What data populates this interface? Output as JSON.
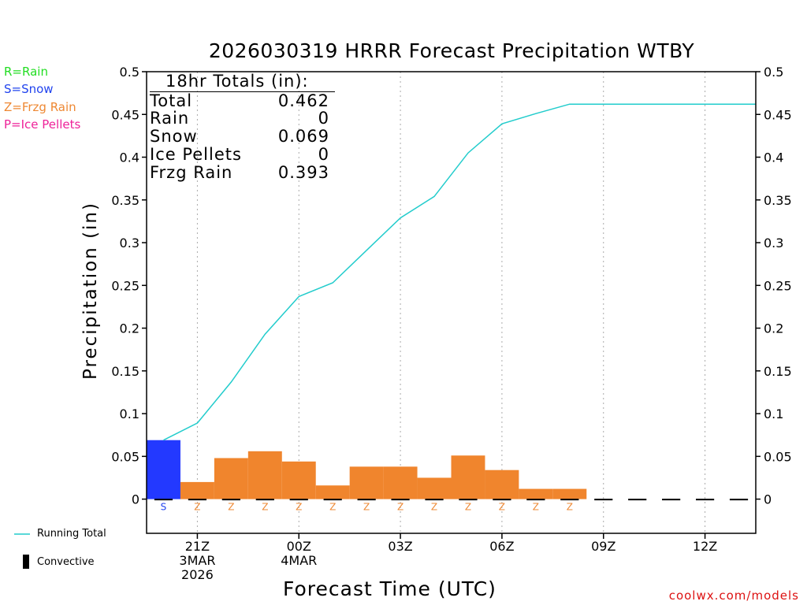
{
  "title": "2026030319 HRRR Forecast Precipitation WTBY",
  "legend": {
    "types": [
      {
        "label": "R=Rain",
        "color": "#22dd22"
      },
      {
        "label": "S=Snow",
        "color": "#2244ee"
      },
      {
        "label": "Z=Frzg Rain",
        "color": "#ee8833"
      },
      {
        "label": "P=Ice Pellets",
        "color": "#ee2299"
      }
    ],
    "running_total_label": "Running Total",
    "convective_label": "Convective"
  },
  "totals": {
    "header": "18hr Totals (in):",
    "rows": [
      {
        "label": "Total",
        "value": "0.462"
      },
      {
        "label": "Rain",
        "value": "0"
      },
      {
        "label": "Snow",
        "value": "0.069"
      },
      {
        "label": "Ice Pellets",
        "value": "0"
      },
      {
        "label": "Frzg Rain",
        "value": "0.393"
      }
    ]
  },
  "footer": {
    "credit": "coolwx.com/models"
  },
  "colors": {
    "snow": "#2339ff",
    "frzg_rain": "#f0852d",
    "running_total": "#22cccc",
    "snow_letter": "#2244ee",
    "frzg_letter": "#ee8833"
  },
  "chart_data": {
    "type": "bar",
    "title": "2026030319 HRRR Forecast Precipitation WTBY",
    "xlabel": "Forecast Time (UTC)",
    "ylabel": "Precipitation (in)",
    "ylim": [
      -0.04,
      0.5
    ],
    "xlim": [
      19.5,
      37.5
    ],
    "yticks": [
      0,
      0.05,
      0.1,
      0.15,
      0.2,
      0.25,
      0.3,
      0.35,
      0.4,
      0.45,
      0.5
    ],
    "ytick_labels": [
      "0",
      "0.05",
      "0.1",
      "0.15",
      "0.2",
      "0.25",
      "0.3",
      "0.35",
      "0.4",
      "0.45",
      "0.5"
    ],
    "xticks": [
      {
        "hour": 21,
        "lines": [
          "21Z",
          "3MAR",
          "2026"
        ]
      },
      {
        "hour": 24,
        "lines": [
          "00Z",
          "4MAR"
        ]
      },
      {
        "hour": 27,
        "lines": [
          "03Z"
        ]
      },
      {
        "hour": 30,
        "lines": [
          "06Z"
        ]
      },
      {
        "hour": 33,
        "lines": [
          "09Z"
        ]
      },
      {
        "hour": 36,
        "lines": [
          "12Z"
        ]
      }
    ],
    "hours": [
      20,
      21,
      22,
      23,
      24,
      25,
      26,
      27,
      28,
      29,
      30,
      31,
      32,
      33,
      34,
      35,
      36,
      37
    ],
    "precip_type": [
      "S",
      "Z",
      "Z",
      "Z",
      "Z",
      "Z",
      "Z",
      "Z",
      "Z",
      "Z",
      "Z",
      "Z",
      "Z",
      "",
      "",
      "",
      "",
      ""
    ],
    "values": [
      0.069,
      0.02,
      0.048,
      0.056,
      0.044,
      0.016,
      0.038,
      0.038,
      0.025,
      0.051,
      0.034,
      0.012,
      0.012,
      0,
      0,
      0,
      0,
      0
    ],
    "running_total": {
      "name": "Running Total",
      "x": [
        20,
        21,
        22,
        23,
        24,
        25,
        26,
        27,
        28,
        29,
        30,
        31,
        32,
        33,
        34,
        35,
        36,
        37
      ],
      "values": [
        0.069,
        0.089,
        0.137,
        0.193,
        0.237,
        0.253,
        0.291,
        0.329,
        0.354,
        0.405,
        0.439,
        0.451,
        0.462,
        0.462,
        0.462,
        0.462,
        0.462,
        0.462
      ]
    }
  }
}
